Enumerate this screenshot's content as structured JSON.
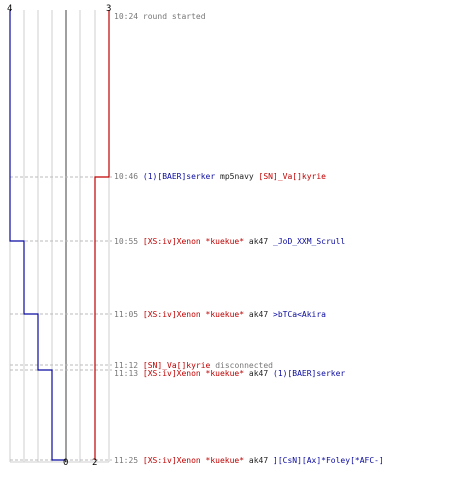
{
  "colors": {
    "team_blue": "#0a0aa0",
    "team_red": "#c00000",
    "text": "#222222",
    "muted": "#777777",
    "grid": "#cfcfcf",
    "dashed": "#bbbbbb"
  },
  "scores": {
    "blue_start": "4",
    "red_start": "3",
    "blue_end": "0",
    "red_end": "2"
  },
  "events": [
    {
      "time": "10:24",
      "text": "round started",
      "type": "info"
    },
    {
      "time": "10:46",
      "killer": "(1)[BAER]serker",
      "killer_team": "blue",
      "weapon": "mp5navy",
      "victim": "[SN]_Va[]kyrie",
      "victim_team": "red",
      "type": "kill"
    },
    {
      "time": "10:55",
      "killer": "[XS:iv]Xenon *kuekue*",
      "killer_team": "red",
      "weapon": "ak47",
      "victim": "_JoD_XXM_Scrull",
      "victim_team": "blue",
      "type": "kill"
    },
    {
      "time": "11:05",
      "killer": "[XS:iv]Xenon *kuekue*",
      "killer_team": "red",
      "weapon": "ak47",
      "victim": ">bTCa<Akira",
      "victim_team": "blue",
      "type": "kill"
    },
    {
      "time": "11:12",
      "player": "[SN]_Va[]kyrie",
      "player_team": "red",
      "text": "disconnected",
      "type": "disconnect"
    },
    {
      "time": "11:13",
      "killer": "[XS:iv]Xenon *kuekue*",
      "killer_team": "red",
      "weapon": "ak47",
      "victim": "(1)[BAER]serker",
      "victim_team": "blue",
      "type": "kill"
    },
    {
      "time": "11:25",
      "killer": "[XS:iv]Xenon *kuekue*",
      "killer_team": "red",
      "weapon": "ak47",
      "victim": "][CsN][Ax]*Foley[*AFC-]",
      "victim_team": "blue",
      "type": "kill"
    }
  ]
}
